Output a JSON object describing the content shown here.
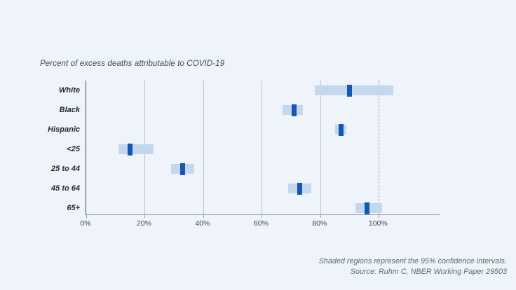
{
  "chart_data": {
    "type": "scatter",
    "style": "point estimates with shaded 95% confidence interval bands, horizontal category rows",
    "title": "Percent of excess deaths attributable to COVID-19",
    "categories": [
      "White",
      "Black",
      "Hispanic",
      "<25",
      "25 to 44",
      "45 to 64",
      "65+"
    ],
    "series": [
      {
        "name": "Point estimate (% of excess deaths attributable to COVID-19)",
        "values": [
          90,
          71,
          87,
          15,
          33,
          73,
          96
        ]
      },
      {
        "name": "95% CI lower bound",
        "values": [
          78,
          67,
          85,
          11,
          29,
          69,
          92
        ]
      },
      {
        "name": "95% CI upper bound",
        "values": [
          105,
          74,
          89,
          23,
          37,
          77,
          101
        ]
      }
    ],
    "xlabel": "",
    "ylabel": "",
    "xlim": [
      0,
      121
    ],
    "xticks": [
      {
        "value": 0,
        "label": "0%"
      },
      {
        "value": 20,
        "label": "20%"
      },
      {
        "value": 40,
        "label": "40%"
      },
      {
        "value": 60,
        "label": "60%"
      },
      {
        "value": 80,
        "label": "80%"
      },
      {
        "value": 100,
        "label": "100%"
      }
    ],
    "reference_line_value": 100,
    "grid": "vertical gridlines at 20% intervals, dashed line at 100%",
    "legend_position": "none"
  },
  "footer": {
    "note": "Shaded regions represent the 95% confidence intervals.",
    "source": "Source: Ruhm C, NBER Working Paper 29503"
  },
  "colors": {
    "background": "#eef4f9",
    "ci_band": "#c3d7ed",
    "point_marker": "#1458b3",
    "gridline": "#bcc2c8",
    "y_axis": "#454c54",
    "x_axis": "#99a1a8",
    "title_text": "#414b55",
    "category_text": "#22292f",
    "tick_text": "#3d454d",
    "footer_text": "#5a6b7c"
  }
}
